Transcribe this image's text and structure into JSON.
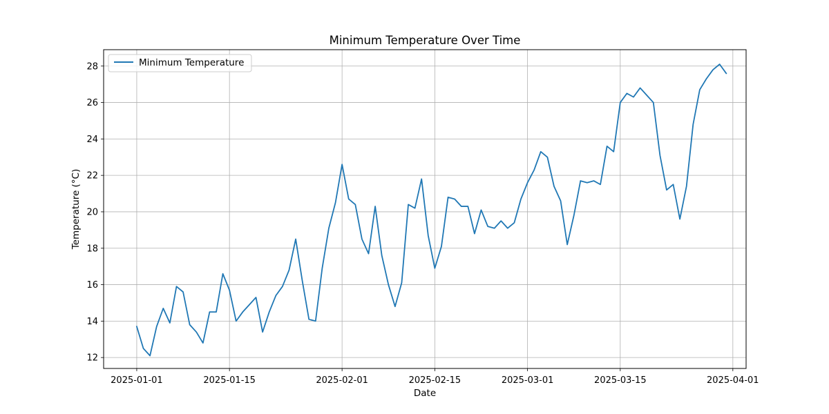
{
  "chart_data": {
    "type": "line",
    "title": "Minimum Temperature Over Time",
    "xlabel": "Date",
    "ylabel": "Temperature (°C)",
    "x_type": "date",
    "xlim": [
      "2024-12-27",
      "2025-04-03"
    ],
    "ylim": [
      11.4,
      28.9
    ],
    "x_ticks": [
      "2025-01-01",
      "2025-01-15",
      "2025-02-01",
      "2025-02-15",
      "2025-03-01",
      "2025-03-15",
      "2025-04-01"
    ],
    "y_ticks": [
      12,
      14,
      16,
      18,
      20,
      22,
      24,
      26,
      28
    ],
    "grid": true,
    "legend": {
      "position": "top-left",
      "entries": [
        "Minimum Temperature"
      ]
    },
    "series": [
      {
        "name": "Minimum Temperature",
        "color": "#1f77b4",
        "x": [
          "2025-01-01",
          "2025-01-02",
          "2025-01-03",
          "2025-01-04",
          "2025-01-05",
          "2025-01-06",
          "2025-01-07",
          "2025-01-08",
          "2025-01-09",
          "2025-01-10",
          "2025-01-11",
          "2025-01-12",
          "2025-01-13",
          "2025-01-14",
          "2025-01-15",
          "2025-01-16",
          "2025-01-17",
          "2025-01-18",
          "2025-01-19",
          "2025-01-20",
          "2025-01-21",
          "2025-01-22",
          "2025-01-23",
          "2025-01-24",
          "2025-01-25",
          "2025-01-26",
          "2025-01-27",
          "2025-01-28",
          "2025-01-29",
          "2025-01-30",
          "2025-01-31",
          "2025-02-01",
          "2025-02-02",
          "2025-02-03",
          "2025-02-04",
          "2025-02-05",
          "2025-02-06",
          "2025-02-07",
          "2025-02-08",
          "2025-02-09",
          "2025-02-10",
          "2025-02-11",
          "2025-02-12",
          "2025-02-13",
          "2025-02-14",
          "2025-02-15",
          "2025-02-16",
          "2025-02-17",
          "2025-02-18",
          "2025-02-19",
          "2025-02-20",
          "2025-02-21",
          "2025-02-22",
          "2025-02-23",
          "2025-02-24",
          "2025-02-25",
          "2025-02-26",
          "2025-02-27",
          "2025-02-28",
          "2025-03-01",
          "2025-03-02",
          "2025-03-03",
          "2025-03-04",
          "2025-03-05",
          "2025-03-06",
          "2025-03-07",
          "2025-03-08",
          "2025-03-09",
          "2025-03-10",
          "2025-03-11",
          "2025-03-12",
          "2025-03-13",
          "2025-03-14",
          "2025-03-15",
          "2025-03-16",
          "2025-03-17",
          "2025-03-18",
          "2025-03-19",
          "2025-03-20",
          "2025-03-21",
          "2025-03-22",
          "2025-03-23",
          "2025-03-24",
          "2025-03-25",
          "2025-03-26",
          "2025-03-27",
          "2025-03-28",
          "2025-03-29",
          "2025-03-30",
          "2025-03-31"
        ],
        "y": [
          13.7,
          12.5,
          12.1,
          13.7,
          14.7,
          13.9,
          15.9,
          15.6,
          13.8,
          13.4,
          12.8,
          14.5,
          14.5,
          16.6,
          15.7,
          14.0,
          14.5,
          14.9,
          15.3,
          13.4,
          14.5,
          15.4,
          15.9,
          16.8,
          18.5,
          16.2,
          14.1,
          14.0,
          16.9,
          19.1,
          20.5,
          22.6,
          20.7,
          20.4,
          18.5,
          17.7,
          20.3,
          17.6,
          16.0,
          14.8,
          16.1,
          20.4,
          20.2,
          21.8,
          18.7,
          16.9,
          18.1,
          20.8,
          20.7,
          20.3,
          20.3,
          18.8,
          20.1,
          19.2,
          19.1,
          19.5,
          19.1,
          19.4,
          20.7,
          21.6,
          22.3,
          23.3,
          23.0,
          21.4,
          20.6,
          18.2,
          19.8,
          21.7,
          21.6,
          21.7,
          21.5,
          23.6,
          23.3,
          26.0,
          26.5,
          26.3,
          26.8,
          26.4,
          26.0,
          23.1,
          21.2,
          21.5,
          19.6,
          21.4,
          24.8,
          26.7,
          27.3,
          27.8,
          28.1,
          27.6
        ]
      }
    ]
  }
}
